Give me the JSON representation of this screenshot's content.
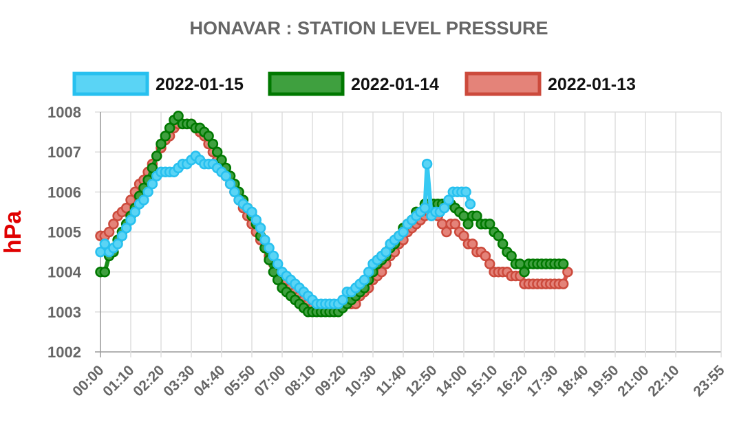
{
  "chart_data": {
    "type": "line",
    "title": "HONAVAR : STATION LEVEL PRESSURE",
    "ylabel": "hPa",
    "xlabel": "",
    "ylim": [
      1002,
      1008
    ],
    "yticks": [
      "1002",
      "1003",
      "1004",
      "1005",
      "1006",
      "1007",
      "1008"
    ],
    "xticks": [
      "00:00",
      "01:10",
      "02:20",
      "03:30",
      "04:40",
      "05:50",
      "07:00",
      "08:10",
      "09:20",
      "10:30",
      "11:40",
      "12:50",
      "14:00",
      "15:10",
      "16:20",
      "17:30",
      "18:40",
      "19:50",
      "21:00",
      "22:10",
      "23:55"
    ],
    "x_range_minutes": [
      0,
      1435
    ],
    "legend_position": "top",
    "series": [
      {
        "name": "2022-01-15",
        "color": "#36c9f2",
        "border_color": "#27c0ef",
        "fill_color": "#5ad4f5",
        "points": [
          [
            0,
            1004.5
          ],
          [
            10,
            1004.7
          ],
          [
            20,
            1004.5
          ],
          [
            30,
            1004.6
          ],
          [
            40,
            1004.7
          ],
          [
            50,
            1004.9
          ],
          [
            60,
            1005.1
          ],
          [
            70,
            1005.3
          ],
          [
            80,
            1005.5
          ],
          [
            90,
            1005.7
          ],
          [
            100,
            1005.8
          ],
          [
            110,
            1006.0
          ],
          [
            120,
            1006.2
          ],
          [
            130,
            1006.4
          ],
          [
            140,
            1006.5
          ],
          [
            150,
            1006.5
          ],
          [
            160,
            1006.5
          ],
          [
            170,
            1006.5
          ],
          [
            180,
            1006.6
          ],
          [
            190,
            1006.7
          ],
          [
            200,
            1006.7
          ],
          [
            210,
            1006.8
          ],
          [
            220,
            1006.9
          ],
          [
            230,
            1006.8
          ],
          [
            240,
            1006.7
          ],
          [
            250,
            1006.7
          ],
          [
            260,
            1006.7
          ],
          [
            270,
            1006.6
          ],
          [
            280,
            1006.5
          ],
          [
            290,
            1006.4
          ],
          [
            300,
            1006.2
          ],
          [
            310,
            1006.0
          ],
          [
            320,
            1005.8
          ],
          [
            330,
            1005.7
          ],
          [
            340,
            1005.6
          ],
          [
            350,
            1005.5
          ],
          [
            360,
            1005.3
          ],
          [
            370,
            1005.1
          ],
          [
            380,
            1004.8
          ],
          [
            390,
            1004.6
          ],
          [
            400,
            1004.4
          ],
          [
            410,
            1004.2
          ],
          [
            420,
            1004.0
          ],
          [
            430,
            1003.9
          ],
          [
            440,
            1003.8
          ],
          [
            450,
            1003.7
          ],
          [
            460,
            1003.6
          ],
          [
            470,
            1003.5
          ],
          [
            480,
            1003.4
          ],
          [
            490,
            1003.3
          ],
          [
            500,
            1003.2
          ],
          [
            510,
            1003.2
          ],
          [
            520,
            1003.2
          ],
          [
            530,
            1003.2
          ],
          [
            540,
            1003.2
          ],
          [
            550,
            1003.2
          ],
          [
            560,
            1003.3
          ],
          [
            570,
            1003.5
          ],
          [
            580,
            1003.5
          ],
          [
            590,
            1003.6
          ],
          [
            600,
            1003.7
          ],
          [
            610,
            1003.8
          ],
          [
            620,
            1004.0
          ],
          [
            630,
            1004.2
          ],
          [
            640,
            1004.3
          ],
          [
            650,
            1004.4
          ],
          [
            660,
            1004.5
          ],
          [
            670,
            1004.7
          ],
          [
            680,
            1004.8
          ],
          [
            690,
            1004.9
          ],
          [
            700,
            1005.0
          ],
          [
            710,
            1005.2
          ],
          [
            720,
            1005.3
          ],
          [
            730,
            1005.4
          ],
          [
            740,
            1005.5
          ],
          [
            750,
            1005.6
          ],
          [
            755,
            1006.7
          ],
          [
            765,
            1005.4
          ],
          [
            775,
            1005.5
          ],
          [
            785,
            1005.5
          ],
          [
            795,
            1005.6
          ],
          [
            805,
            1005.8
          ],
          [
            815,
            1006.0
          ],
          [
            825,
            1006.0
          ],
          [
            835,
            1006.0
          ],
          [
            845,
            1006.0
          ],
          [
            855,
            1005.7
          ]
        ]
      },
      {
        "name": "2022-01-14",
        "color": "#198c19",
        "border_color": "#007800",
        "fill_color": "#3fa03f",
        "points": [
          [
            0,
            1004.0
          ],
          [
            10,
            1004.0
          ],
          [
            20,
            1004.4
          ],
          [
            30,
            1004.5
          ],
          [
            40,
            1004.8
          ],
          [
            50,
            1005.0
          ],
          [
            60,
            1005.2
          ],
          [
            70,
            1005.4
          ],
          [
            80,
            1005.6
          ],
          [
            90,
            1005.9
          ],
          [
            100,
            1006.1
          ],
          [
            110,
            1006.3
          ],
          [
            120,
            1006.6
          ],
          [
            130,
            1006.9
          ],
          [
            140,
            1007.2
          ],
          [
            150,
            1007.4
          ],
          [
            160,
            1007.6
          ],
          [
            170,
            1007.8
          ],
          [
            180,
            1007.9
          ],
          [
            190,
            1007.7
          ],
          [
            200,
            1007.7
          ],
          [
            210,
            1007.7
          ],
          [
            220,
            1007.6
          ],
          [
            230,
            1007.6
          ],
          [
            240,
            1007.5
          ],
          [
            250,
            1007.4
          ],
          [
            260,
            1007.2
          ],
          [
            270,
            1007.0
          ],
          [
            280,
            1006.8
          ],
          [
            290,
            1006.6
          ],
          [
            300,
            1006.4
          ],
          [
            310,
            1006.2
          ],
          [
            320,
            1006.0
          ],
          [
            330,
            1005.8
          ],
          [
            340,
            1005.6
          ],
          [
            350,
            1005.4
          ],
          [
            360,
            1005.2
          ],
          [
            370,
            1004.9
          ],
          [
            380,
            1004.6
          ],
          [
            390,
            1004.3
          ],
          [
            400,
            1004.0
          ],
          [
            410,
            1003.8
          ],
          [
            420,
            1003.6
          ],
          [
            430,
            1003.5
          ],
          [
            440,
            1003.4
          ],
          [
            450,
            1003.3
          ],
          [
            460,
            1003.2
          ],
          [
            470,
            1003.1
          ],
          [
            480,
            1003.0
          ],
          [
            490,
            1003.0
          ],
          [
            500,
            1003.0
          ],
          [
            510,
            1003.0
          ],
          [
            520,
            1003.0
          ],
          [
            530,
            1003.0
          ],
          [
            540,
            1003.0
          ],
          [
            550,
            1003.0
          ],
          [
            560,
            1003.1
          ],
          [
            570,
            1003.2
          ],
          [
            580,
            1003.3
          ],
          [
            590,
            1003.4
          ],
          [
            600,
            1003.5
          ],
          [
            610,
            1003.6
          ],
          [
            620,
            1003.8
          ],
          [
            630,
            1004.0
          ],
          [
            640,
            1004.2
          ],
          [
            650,
            1004.3
          ],
          [
            660,
            1004.4
          ],
          [
            670,
            1004.6
          ],
          [
            680,
            1004.7
          ],
          [
            690,
            1004.9
          ],
          [
            700,
            1005.1
          ],
          [
            710,
            1005.2
          ],
          [
            720,
            1005.3
          ],
          [
            730,
            1005.5
          ],
          [
            740,
            1005.5
          ],
          [
            750,
            1005.7
          ],
          [
            760,
            1005.7
          ],
          [
            770,
            1005.7
          ],
          [
            780,
            1005.7
          ],
          [
            790,
            1005.7
          ],
          [
            800,
            1005.7
          ],
          [
            810,
            1005.7
          ],
          [
            820,
            1005.6
          ],
          [
            830,
            1005.5
          ],
          [
            840,
            1005.4
          ],
          [
            850,
            1005.2
          ],
          [
            860,
            1005.4
          ],
          [
            870,
            1005.4
          ],
          [
            880,
            1005.2
          ],
          [
            890,
            1005.2
          ],
          [
            900,
            1005.2
          ],
          [
            910,
            1005.0
          ],
          [
            920,
            1004.9
          ],
          [
            930,
            1004.7
          ],
          [
            940,
            1004.5
          ],
          [
            950,
            1004.4
          ],
          [
            960,
            1004.2
          ],
          [
            970,
            1004.2
          ],
          [
            980,
            1004.0
          ],
          [
            990,
            1004.2
          ],
          [
            1000,
            1004.2
          ],
          [
            1010,
            1004.2
          ],
          [
            1020,
            1004.2
          ],
          [
            1030,
            1004.2
          ],
          [
            1040,
            1004.2
          ],
          [
            1050,
            1004.2
          ],
          [
            1060,
            1004.2
          ],
          [
            1070,
            1004.2
          ]
        ]
      },
      {
        "name": "2022-01-13",
        "color": "#d9534a",
        "border_color": "#cc4a3c",
        "fill_color": "#e48379",
        "points": [
          [
            0,
            1004.9
          ],
          [
            10,
            1004.9
          ],
          [
            20,
            1005.0
          ],
          [
            30,
            1005.2
          ],
          [
            40,
            1005.4
          ],
          [
            50,
            1005.5
          ],
          [
            60,
            1005.6
          ],
          [
            70,
            1005.8
          ],
          [
            80,
            1006.0
          ],
          [
            90,
            1006.2
          ],
          [
            100,
            1006.3
          ],
          [
            110,
            1006.5
          ],
          [
            120,
            1006.7
          ],
          [
            130,
            1006.9
          ],
          [
            140,
            1007.1
          ],
          [
            150,
            1007.3
          ],
          [
            160,
            1007.4
          ],
          [
            170,
            1007.6
          ],
          [
            180,
            1007.7
          ],
          [
            190,
            1007.7
          ],
          [
            200,
            1007.7
          ],
          [
            210,
            1007.7
          ],
          [
            220,
            1007.6
          ],
          [
            230,
            1007.5
          ],
          [
            240,
            1007.4
          ],
          [
            250,
            1007.2
          ],
          [
            260,
            1007.0
          ],
          [
            270,
            1006.8
          ],
          [
            280,
            1006.6
          ],
          [
            290,
            1006.4
          ],
          [
            300,
            1006.2
          ],
          [
            310,
            1006.0
          ],
          [
            320,
            1005.8
          ],
          [
            330,
            1005.6
          ],
          [
            340,
            1005.4
          ],
          [
            350,
            1005.2
          ],
          [
            360,
            1005.0
          ],
          [
            370,
            1004.8
          ],
          [
            380,
            1004.6
          ],
          [
            390,
            1004.4
          ],
          [
            400,
            1004.2
          ],
          [
            410,
            1004.0
          ],
          [
            420,
            1003.9
          ],
          [
            430,
            1003.8
          ],
          [
            440,
            1003.6
          ],
          [
            450,
            1003.5
          ],
          [
            460,
            1003.4
          ],
          [
            470,
            1003.3
          ],
          [
            480,
            1003.2
          ],
          [
            490,
            1003.1
          ],
          [
            500,
            1003.1
          ],
          [
            510,
            1003.1
          ],
          [
            520,
            1003.1
          ],
          [
            530,
            1003.1
          ],
          [
            540,
            1003.1
          ],
          [
            550,
            1003.1
          ],
          [
            560,
            1003.2
          ],
          [
            570,
            1003.2
          ],
          [
            580,
            1003.2
          ],
          [
            590,
            1003.2
          ],
          [
            600,
            1003.4
          ],
          [
            610,
            1003.5
          ],
          [
            620,
            1003.6
          ],
          [
            630,
            1003.8
          ],
          [
            640,
            1003.9
          ],
          [
            650,
            1004.0
          ],
          [
            660,
            1004.2
          ],
          [
            670,
            1004.4
          ],
          [
            680,
            1004.5
          ],
          [
            690,
            1004.7
          ],
          [
            700,
            1004.8
          ],
          [
            710,
            1005.0
          ],
          [
            720,
            1005.1
          ],
          [
            730,
            1005.2
          ],
          [
            740,
            1005.3
          ],
          [
            750,
            1005.4
          ],
          [
            760,
            1005.5
          ],
          [
            770,
            1005.5
          ],
          [
            780,
            1005.4
          ],
          [
            790,
            1005.2
          ],
          [
            800,
            1005.0
          ],
          [
            810,
            1005.2
          ],
          [
            820,
            1005.2
          ],
          [
            830,
            1005.0
          ],
          [
            840,
            1004.9
          ],
          [
            850,
            1004.7
          ],
          [
            860,
            1004.7
          ],
          [
            870,
            1004.5
          ],
          [
            880,
            1004.5
          ],
          [
            890,
            1004.4
          ],
          [
            900,
            1004.2
          ],
          [
            910,
            1004.0
          ],
          [
            920,
            1004.0
          ],
          [
            930,
            1004.0
          ],
          [
            940,
            1004.0
          ],
          [
            950,
            1003.9
          ],
          [
            960,
            1003.9
          ],
          [
            970,
            1003.9
          ],
          [
            980,
            1003.7
          ],
          [
            990,
            1003.7
          ],
          [
            1000,
            1003.7
          ],
          [
            1010,
            1003.7
          ],
          [
            1020,
            1003.7
          ],
          [
            1030,
            1003.7
          ],
          [
            1040,
            1003.7
          ],
          [
            1050,
            1003.7
          ],
          [
            1060,
            1003.7
          ],
          [
            1070,
            1003.7
          ],
          [
            1080,
            1004.0
          ]
        ]
      }
    ]
  }
}
